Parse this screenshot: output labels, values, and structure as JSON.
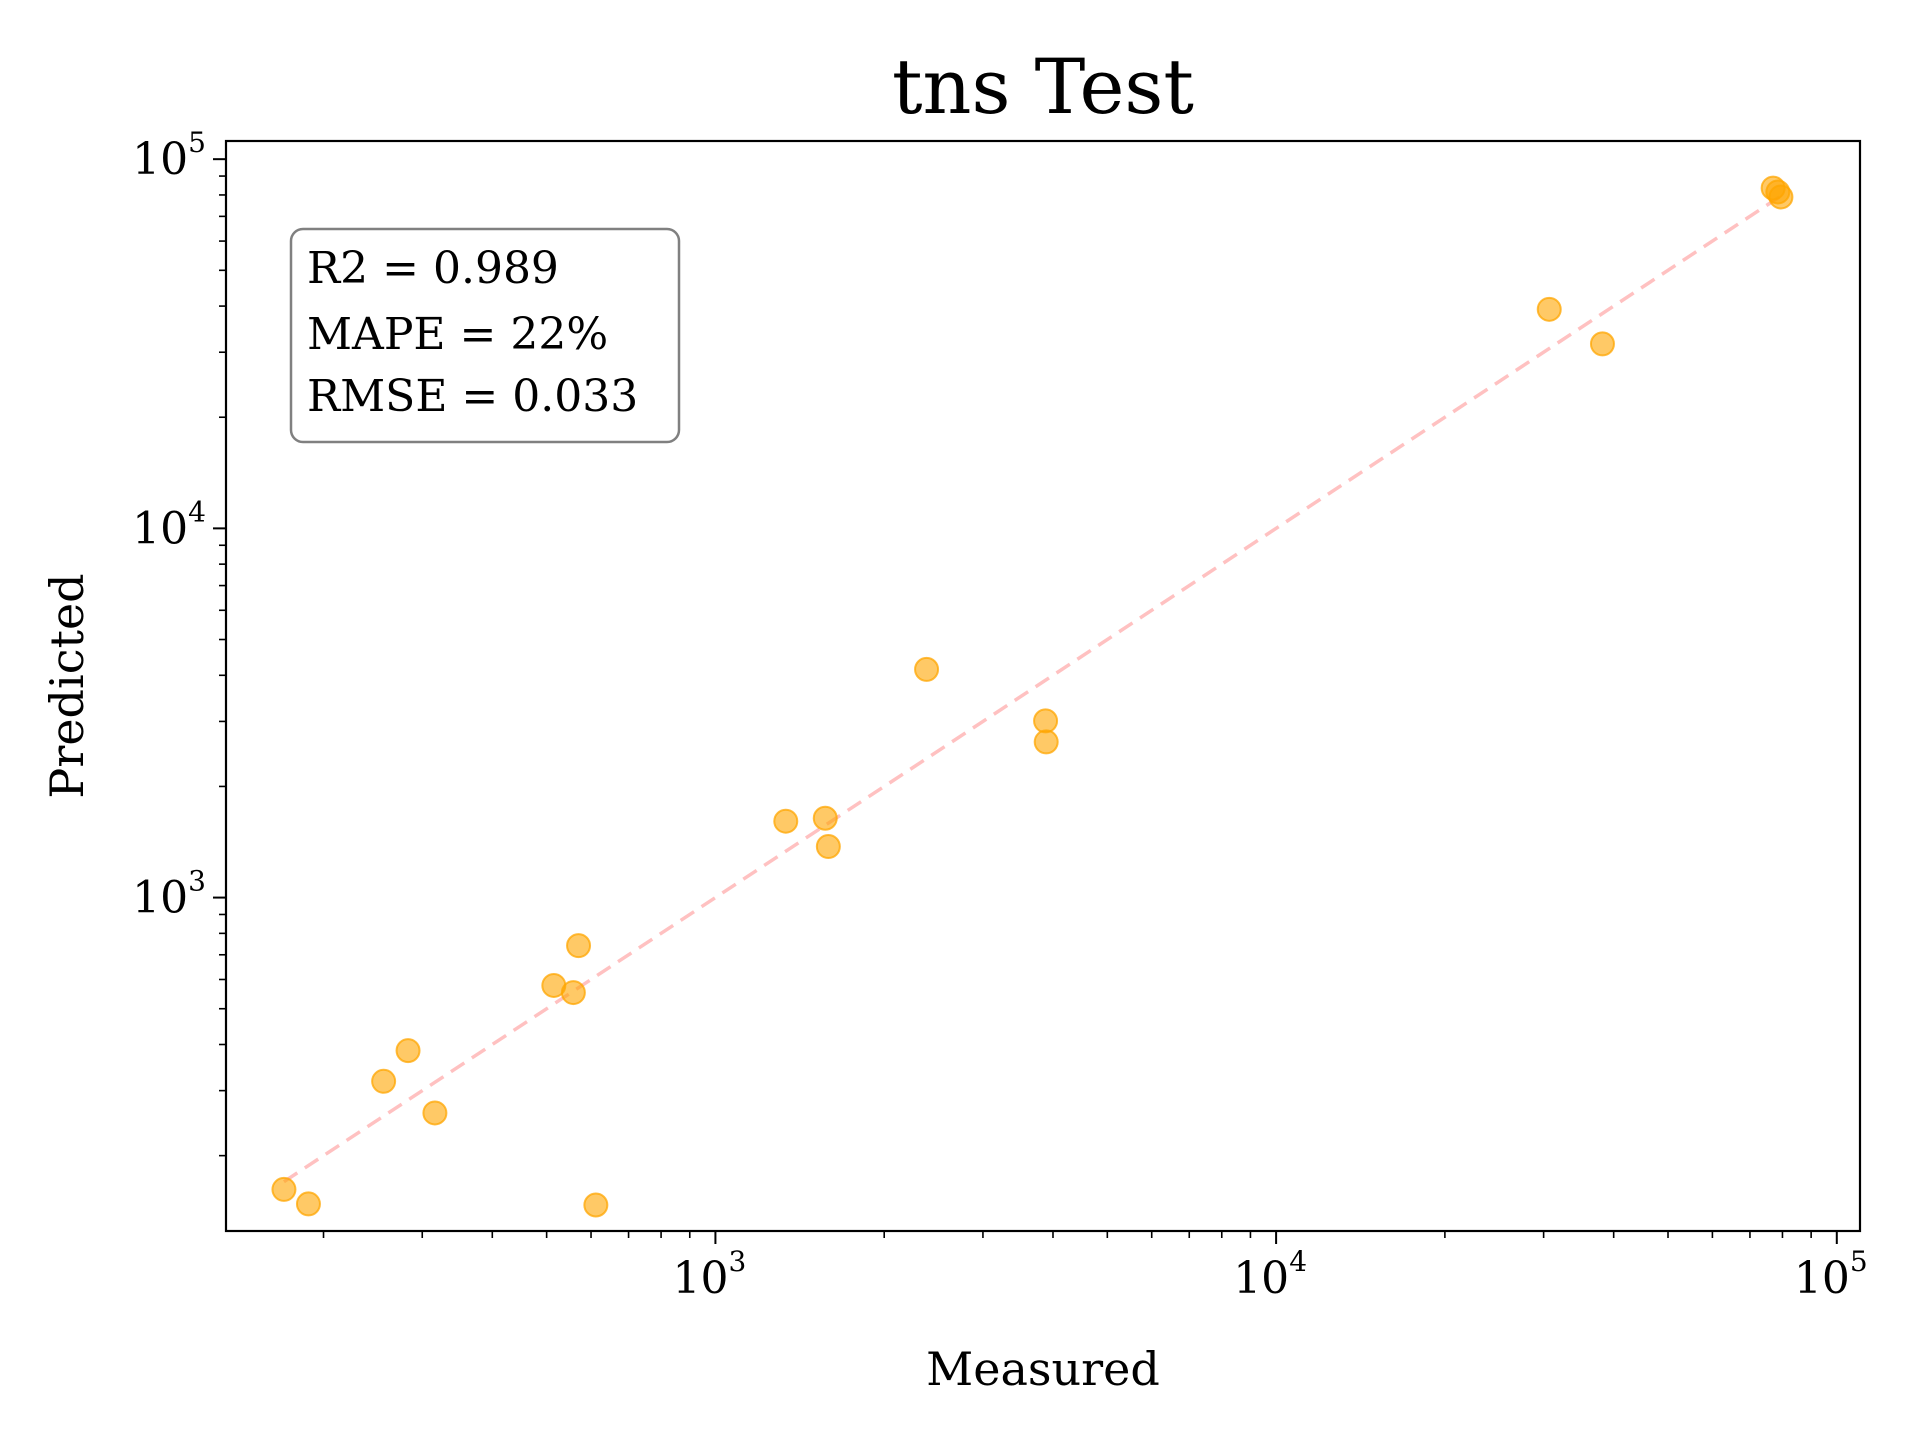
{
  "chart_data": {
    "type": "scatter",
    "title": "tns Test",
    "xlabel": "Measured",
    "ylabel": "Predicted",
    "xscale": "log",
    "yscale": "log",
    "xlim": [
      134,
      110000
    ],
    "ylim": [
      125,
      112000
    ],
    "grid": false,
    "x_ticks": [
      {
        "base": "10",
        "exp": "3",
        "value": 1000
      },
      {
        "base": "10",
        "exp": "4",
        "value": 10000
      },
      {
        "base": "10",
        "exp": "5",
        "value": 100000
      }
    ],
    "y_ticks": [
      {
        "base": "10",
        "exp": "3",
        "value": 1000
      },
      {
        "base": "10",
        "exp": "4",
        "value": 10000
      },
      {
        "base": "10",
        "exp": "5",
        "value": 100000
      }
    ],
    "series": [
      {
        "color": "#ffa500",
        "points": [
          [
            170,
            162
          ],
          [
            188,
            148
          ],
          [
            256,
            318
          ],
          [
            283,
            385
          ],
          [
            316,
            261
          ],
          [
            515,
            578
          ],
          [
            558,
            553
          ],
          [
            570,
            741
          ],
          [
            612,
            147
          ],
          [
            1335,
            1610
          ],
          [
            1570,
            1640
          ],
          [
            1590,
            1375
          ],
          [
            2380,
            4150
          ],
          [
            3880,
            3010
          ],
          [
            3890,
            2640
          ],
          [
            30700,
            39200
          ],
          [
            38200,
            31600
          ],
          [
            77000,
            83500
          ],
          [
            78500,
            81500
          ],
          [
            79500,
            79000
          ]
        ]
      }
    ],
    "reference_line": {
      "color": "#ff9999",
      "style": "dashed",
      "from": [
        170,
        170
      ],
      "to": [
        79000,
        79000
      ]
    },
    "stats_box": {
      "lines": [
        "R2 = 0.989",
        "MAPE = 22%",
        "RMSE = 0.033"
      ],
      "location": "top-left"
    }
  }
}
